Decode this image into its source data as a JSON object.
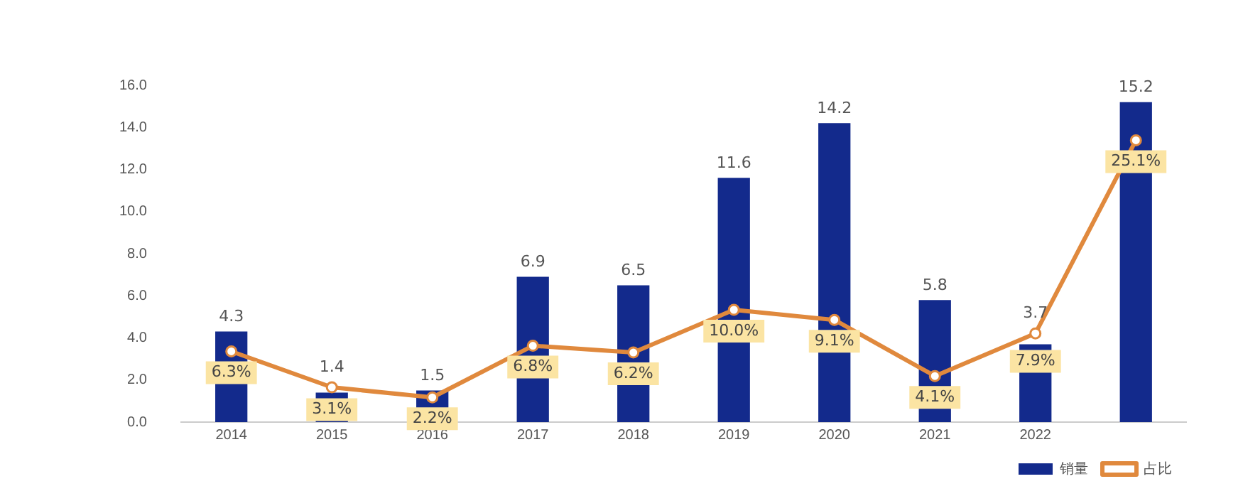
{
  "chart_data": {
    "type": "bar",
    "categories": [
      "2014",
      "2015",
      "2016",
      "2017",
      "2018",
      "2019",
      "2020",
      "2021",
      "2022",
      null
    ],
    "ylim": [
      0,
      16
    ],
    "yticks": [
      {
        "value": 0,
        "label": "0.0"
      },
      {
        "value": 2,
        "label": "2.0"
      },
      {
        "value": 4,
        "label": "4.0"
      },
      {
        "value": 6,
        "label": "6.0"
      },
      {
        "value": 8,
        "label": "8.0"
      },
      {
        "value": 10,
        "label": "10.0"
      },
      {
        "value": 12,
        "label": "12.0"
      },
      {
        "value": 14,
        "label": "14.0"
      },
      {
        "value": 16,
        "label": "16.0"
      }
    ],
    "grid": false,
    "legend": "bottom right",
    "marker": "circle",
    "line_style": "solid",
    "series": [
      {
        "name": "销量",
        "color": "#132a8c",
        "values": [
          4.3,
          1.4,
          1.5,
          6.9,
          6.5,
          11.6,
          14.2,
          5.8,
          3.7,
          15.2
        ],
        "value_labels": [
          "4.3",
          "1.4",
          "1.5",
          "6.9",
          "6.5",
          "11.6",
          "14.2",
          "5.8",
          "3.7",
          "15.2"
        ]
      },
      {
        "name": "占比",
        "type": "line",
        "axis": "y2",
        "color": "#e0893d",
        "values": [
          6.3,
          3.1,
          2.2,
          6.8,
          6.2,
          10.0,
          9.1,
          4.1,
          7.9,
          25.1
        ],
        "value_labels": [
          "6.3%",
          "3.1%",
          "2.2%",
          "6.8%",
          "6.2%",
          "10.0%",
          "9.1%",
          "4.1%",
          "7.9%",
          "25.1%"
        ]
      }
    ]
  }
}
